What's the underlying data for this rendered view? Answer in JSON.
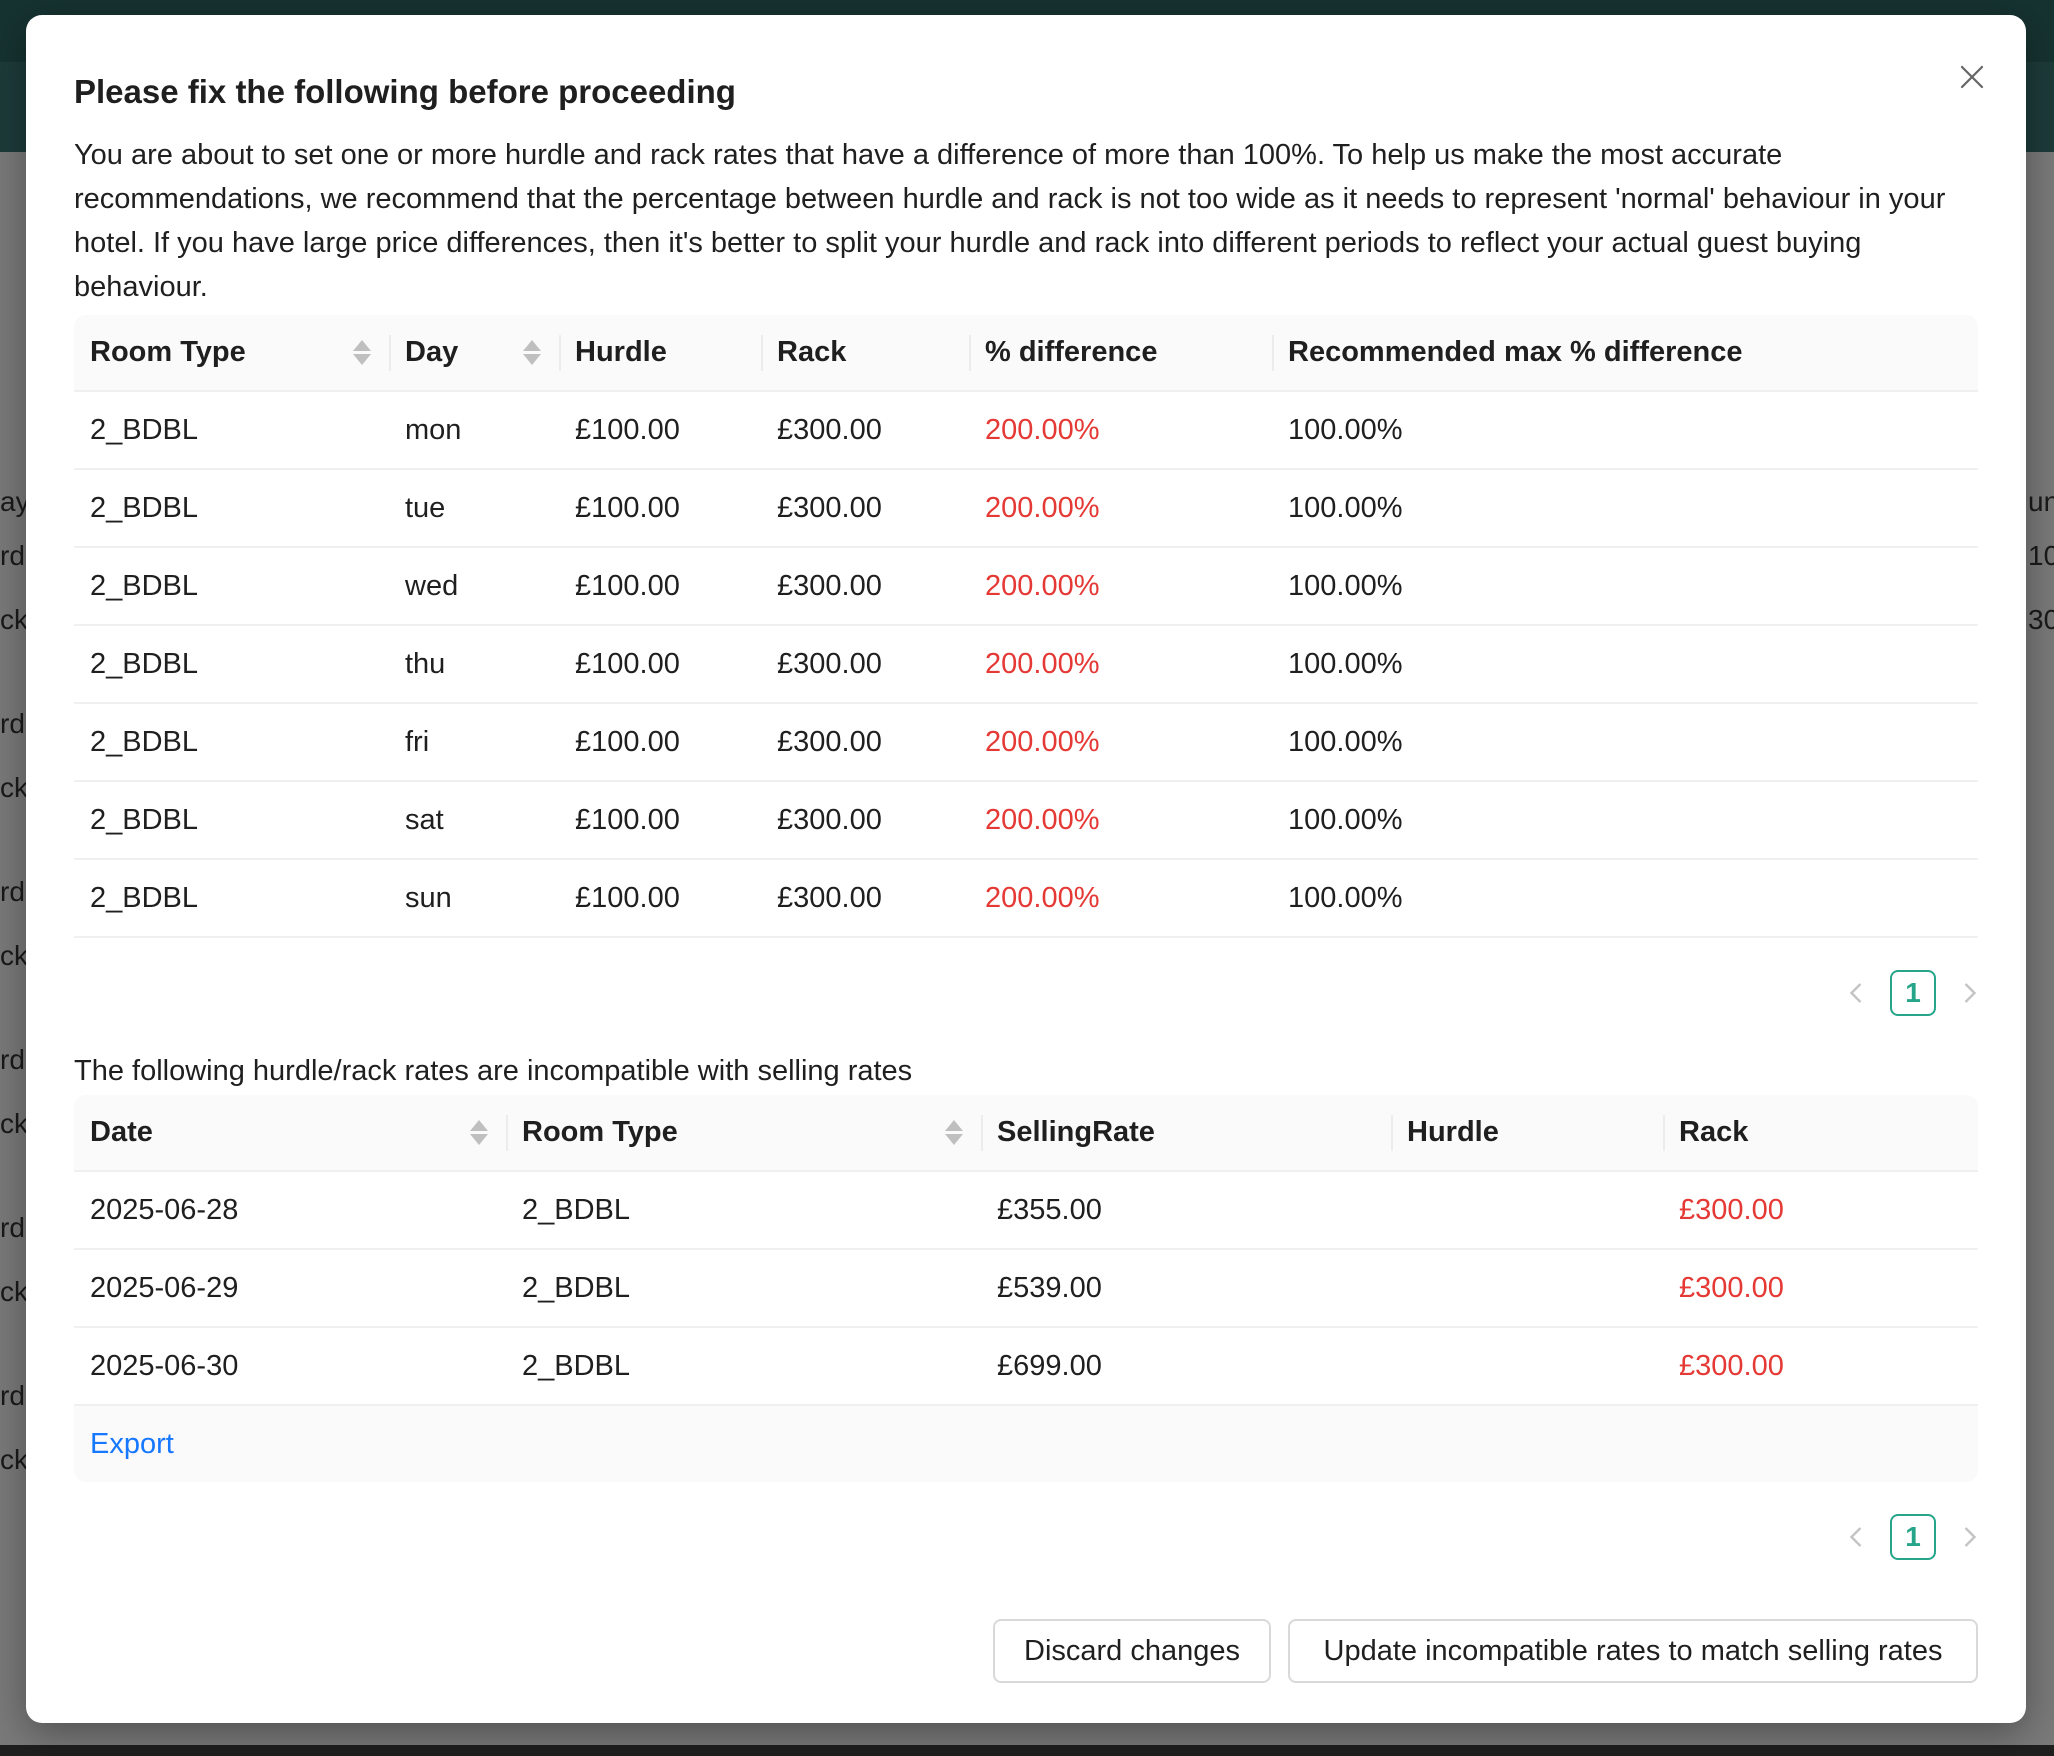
{
  "modal": {
    "title": "Please fix the following before proceeding",
    "message": "You are about to set one or more hurdle and rack rates that have a difference of more than 100%. To help us make the most accurate recommendations, we recommend that the percentage between hurdle and rack is not too wide as it needs to represent 'normal' behaviour in your hotel. If you have large price differences, then it's better to split your hurdle and rack into different periods to reflect your actual guest buying behaviour.",
    "close_icon": "close-icon"
  },
  "diff_table": {
    "columns": [
      "Room Type",
      "Day",
      "Hurdle",
      "Rack",
      "% difference",
      "Recommended max % difference"
    ],
    "rows": [
      [
        "2_BDBL",
        "mon",
        "£100.00",
        "£300.00",
        "200.00%",
        "100.00%"
      ],
      [
        "2_BDBL",
        "tue",
        "£100.00",
        "£300.00",
        "200.00%",
        "100.00%"
      ],
      [
        "2_BDBL",
        "wed",
        "£100.00",
        "£300.00",
        "200.00%",
        "100.00%"
      ],
      [
        "2_BDBL",
        "thu",
        "£100.00",
        "£300.00",
        "200.00%",
        "100.00%"
      ],
      [
        "2_BDBL",
        "fri",
        "£100.00",
        "£300.00",
        "200.00%",
        "100.00%"
      ],
      [
        "2_BDBL",
        "sat",
        "£100.00",
        "£300.00",
        "200.00%",
        "100.00%"
      ],
      [
        "2_BDBL",
        "sun",
        "£100.00",
        "£300.00",
        "200.00%",
        "100.00%"
      ]
    ],
    "pagination": {
      "current_page": "1"
    }
  },
  "incompatible": {
    "heading": "The following hurdle/rack rates are incompatible with selling rates",
    "columns": [
      "Date",
      "Room Type",
      "SellingRate",
      "Hurdle",
      "Rack"
    ],
    "rows": [
      [
        "2025-06-28",
        "2_BDBL",
        "£355.00",
        "",
        "£300.00"
      ],
      [
        "2025-06-29",
        "2_BDBL",
        "£539.00",
        "",
        "£300.00"
      ],
      [
        "2025-06-30",
        "2_BDBL",
        "£699.00",
        "",
        "£300.00"
      ]
    ],
    "export_label": "Export",
    "pagination": {
      "current_page": "1"
    }
  },
  "footer": {
    "discard_label": "Discard changes",
    "update_label": "Update incompatible rates to match selling rates"
  },
  "background": {
    "left_fragments": [
      "ay",
      "rd",
      "ck",
      "rd",
      "ck",
      "rd",
      "ck",
      "rd",
      "ck",
      "rd",
      "ck",
      "rd",
      "ck"
    ],
    "right_fragments": [
      "un",
      "10",
      "30"
    ]
  },
  "colors": {
    "error": "#e53935",
    "link": "#1677ff",
    "pagination_accent": "#27a58a",
    "header_bg": "#1d3b3a"
  }
}
